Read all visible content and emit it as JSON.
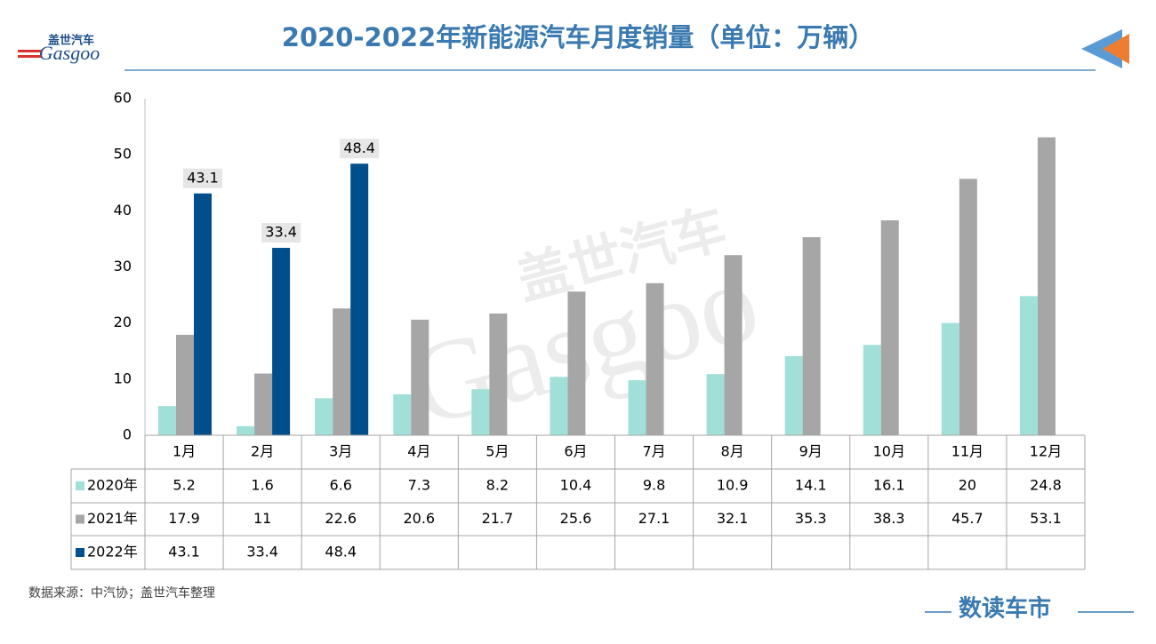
{
  "logo": {
    "name": "盖世汽车",
    "brand": "Gasgoo"
  },
  "watermark": {
    "name": "盖世汽车",
    "brand": "Gasgoo"
  },
  "chart_data": {
    "type": "bar",
    "title": "2020-2022年新能源汽车月度销量（单位：万辆）",
    "categories": [
      "1月",
      "2月",
      "3月",
      "4月",
      "5月",
      "6月",
      "7月",
      "8月",
      "9月",
      "10月",
      "11月",
      "12月"
    ],
    "series": [
      {
        "name": "2020年",
        "color": "#a0e0d8",
        "values": [
          5.2,
          1.6,
          6.6,
          7.3,
          8.2,
          10.4,
          9.8,
          10.9,
          14.1,
          16.1,
          20,
          24.8
        ]
      },
      {
        "name": "2021年",
        "color": "#a6a6a6",
        "values": [
          17.9,
          11,
          22.6,
          20.6,
          21.7,
          25.6,
          27.1,
          32.1,
          35.3,
          38.3,
          45.7,
          53.1
        ]
      },
      {
        "name": "2022年",
        "color": "#004f8c",
        "values": [
          43.1,
          33.4,
          48.4,
          null,
          null,
          null,
          null,
          null,
          null,
          null,
          null,
          null
        ],
        "data_labels": true
      }
    ],
    "ylim": [
      0,
      60
    ],
    "yticks": [
      0,
      10,
      20,
      30,
      40,
      50,
      60
    ],
    "grid": false,
    "data_table": true
  },
  "source": "数据来源：中汽协；盖世汽车整理",
  "footer": "数读车市"
}
